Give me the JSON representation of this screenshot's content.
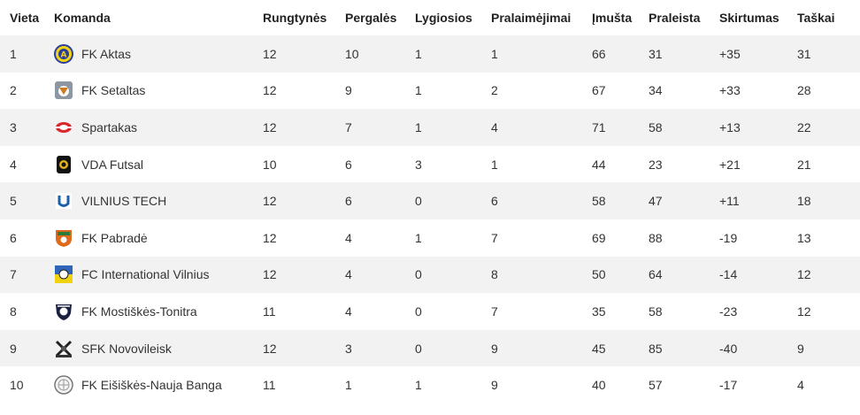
{
  "table": {
    "headers": {
      "position": "Vieta",
      "team": "Komanda",
      "played": "Rungtynės",
      "wins": "Pergalės",
      "draws": "Lygiosios",
      "losses": "Pralaimėjimai",
      "goals_for": "Įmušta",
      "goals_against": "Praleista",
      "goal_diff": "Skirtumas",
      "points": "Taškai"
    },
    "rows": [
      {
        "position": "1",
        "team": "FK Aktas",
        "logo": "fk-aktas-logo-icon",
        "played": "12",
        "wins": "10",
        "draws": "1",
        "losses": "1",
        "goals_for": "66",
        "goals_against": "31",
        "goal_diff": "+35",
        "points": "31"
      },
      {
        "position": "2",
        "team": "FK Setaltas",
        "logo": "fk-setaltas-logo-icon",
        "played": "12",
        "wins": "9",
        "draws": "1",
        "losses": "2",
        "goals_for": "67",
        "goals_against": "34",
        "goal_diff": "+33",
        "points": "28"
      },
      {
        "position": "3",
        "team": "Spartakas",
        "logo": "spartakas-logo-icon",
        "played": "12",
        "wins": "7",
        "draws": "1",
        "losses": "4",
        "goals_for": "71",
        "goals_against": "58",
        "goal_diff": "+13",
        "points": "22"
      },
      {
        "position": "4",
        "team": "VDA Futsal",
        "logo": "vda-futsal-logo-icon",
        "played": "10",
        "wins": "6",
        "draws": "3",
        "losses": "1",
        "goals_for": "44",
        "goals_against": "23",
        "goal_diff": "+21",
        "points": "21"
      },
      {
        "position": "5",
        "team": "VILNIUS TECH",
        "logo": "vilnius-tech-logo-icon",
        "played": "12",
        "wins": "6",
        "draws": "0",
        "losses": "6",
        "goals_for": "58",
        "goals_against": "47",
        "goal_diff": "+11",
        "points": "18"
      },
      {
        "position": "6",
        "team": "FK Pabradė",
        "logo": "fk-pabrade-logo-icon",
        "played": "12",
        "wins": "4",
        "draws": "1",
        "losses": "7",
        "goals_for": "69",
        "goals_against": "88",
        "goal_diff": "-19",
        "points": "13"
      },
      {
        "position": "7",
        "team": "FC International Vilnius",
        "logo": "fc-international-vilnius-logo-icon",
        "played": "12",
        "wins": "4",
        "draws": "0",
        "losses": "8",
        "goals_for": "50",
        "goals_against": "64",
        "goal_diff": "-14",
        "points": "12"
      },
      {
        "position": "8",
        "team": "FK Mostiškės-Tonitra",
        "logo": "fk-mostiskes-tonitra-logo-icon",
        "played": "11",
        "wins": "4",
        "draws": "0",
        "losses": "7",
        "goals_for": "35",
        "goals_against": "58",
        "goal_diff": "-23",
        "points": "12"
      },
      {
        "position": "9",
        "team": "SFK Novovileisk",
        "logo": "sfk-novovileisk-logo-icon",
        "played": "12",
        "wins": "3",
        "draws": "0",
        "losses": "9",
        "goals_for": "45",
        "goals_against": "85",
        "goal_diff": "-40",
        "points": "9"
      },
      {
        "position": "10",
        "team": "FK Eišiškės-Nauja Banga",
        "logo": "fk-eisiskes-nauja-banga-logo-icon",
        "played": "11",
        "wins": "1",
        "draws": "1",
        "losses": "9",
        "goals_for": "40",
        "goals_against": "57",
        "goal_diff": "-17",
        "points": "4"
      }
    ]
  }
}
